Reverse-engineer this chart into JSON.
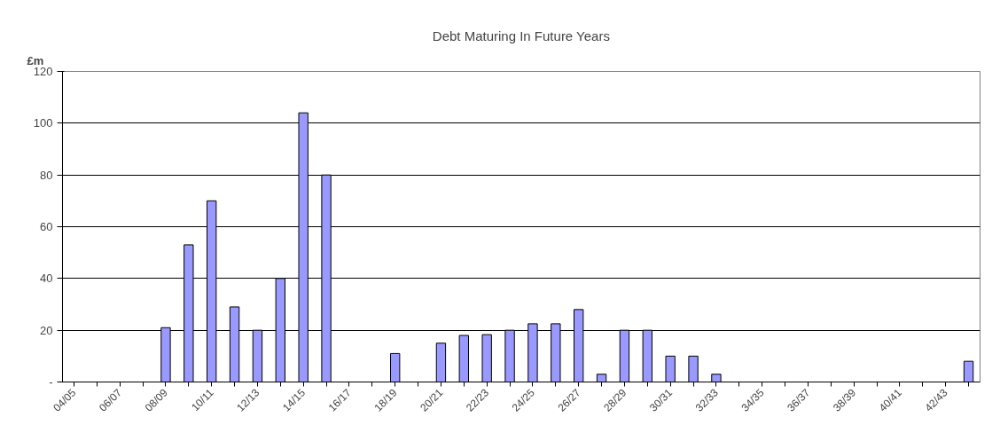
{
  "chart_data": {
    "type": "bar",
    "title": "Debt Maturing In Future Years",
    "ylabel": "£m",
    "categories": [
      "04/05",
      null,
      "06/07",
      null,
      "08/09",
      null,
      "10/11",
      null,
      "12/13",
      null,
      "14/15",
      null,
      "16/17",
      null,
      "18/19",
      null,
      "20/21",
      null,
      "22/23",
      null,
      "24/25",
      null,
      "26/27",
      null,
      "28/29",
      null,
      "30/31",
      null,
      "32/33",
      null,
      "34/35",
      null,
      "36/37",
      null,
      "38/39",
      null,
      "40/41",
      null,
      "42/43",
      null
    ],
    "values": [
      0,
      0,
      0,
      0,
      21,
      53,
      70,
      29,
      20,
      40,
      104,
      80,
      0,
      0,
      11,
      0,
      15,
      18,
      18.3,
      20,
      22.5,
      22.5,
      28,
      3,
      20,
      20,
      10,
      10,
      3,
      0,
      0,
      0,
      0,
      0,
      0,
      0,
      0,
      0,
      0,
      8
    ],
    "color": "#9999ff",
    "ylim": [
      0,
      120
    ],
    "yticks": [
      {
        "value": 0,
        "label": "-"
      },
      20,
      40,
      60,
      80,
      100,
      120
    ],
    "grid": "y"
  }
}
